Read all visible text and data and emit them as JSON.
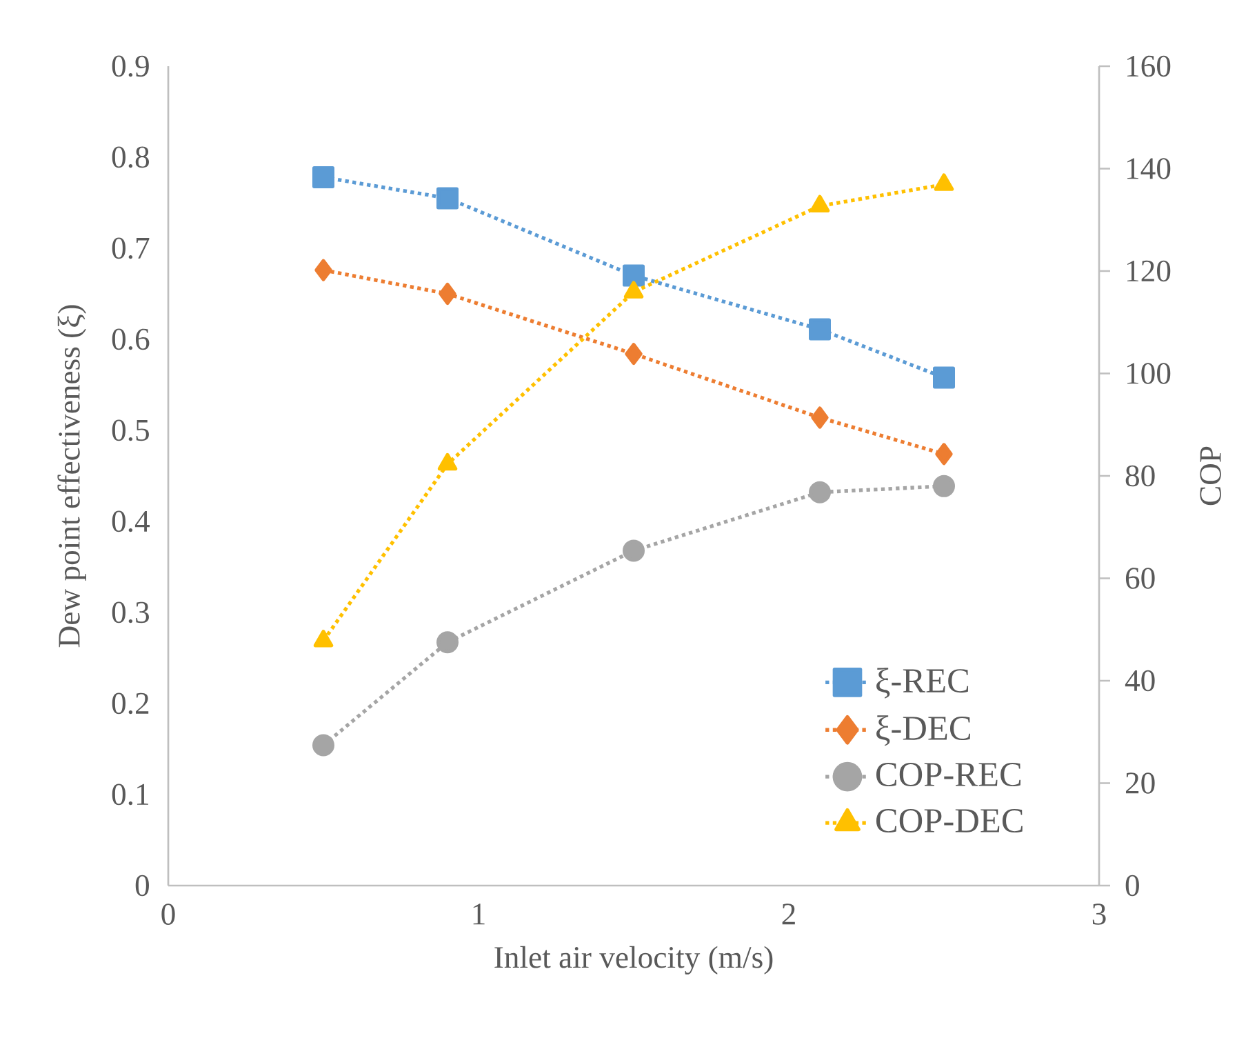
{
  "chart_data": {
    "type": "line",
    "xlabel": "Inlet air velocity (m/s)",
    "ylabel": "Dew point effectiveness (ξ)",
    "y2label": "COP",
    "x": [
      0.5,
      0.9,
      1.5,
      2.1,
      2.5
    ],
    "series": [
      {
        "name": "ξ-REC",
        "color": "#5b9bd5",
        "marker": "square",
        "values": [
          0.778,
          0.755,
          0.67,
          0.611,
          0.558
        ]
      },
      {
        "name": "ξ-DEC",
        "color": "#ed7d31",
        "marker": "diamond",
        "values": [
          0.676,
          0.65,
          0.584,
          0.514,
          0.474
        ]
      },
      {
        "name": "COP-REC",
        "color": "#a5a5a5",
        "marker": "circle",
        "axis": "y2",
        "values": [
          27.4,
          47.5,
          65.4,
          76.8,
          78.0
        ]
      },
      {
        "name": "COP-DEC",
        "color": "#ffc000",
        "marker": "triangle",
        "axis": "y2",
        "values": [
          47.8,
          82.3,
          115.9,
          132.7,
          136.9
        ]
      }
    ],
    "xlim": [
      0,
      3
    ],
    "xticks": [
      0,
      1,
      2,
      3
    ],
    "ylim": [
      0,
      0.9
    ],
    "yticks": [
      0,
      0.1,
      0.2,
      0.3,
      0.4,
      0.5,
      0.6,
      0.7,
      0.8,
      0.9
    ],
    "y2lim": [
      0,
      160
    ],
    "y2ticks": [
      0,
      20,
      40,
      60,
      80,
      100,
      120,
      140,
      160
    ],
    "line_style": "dotted",
    "legend": "bottom right",
    "grid": false
  }
}
